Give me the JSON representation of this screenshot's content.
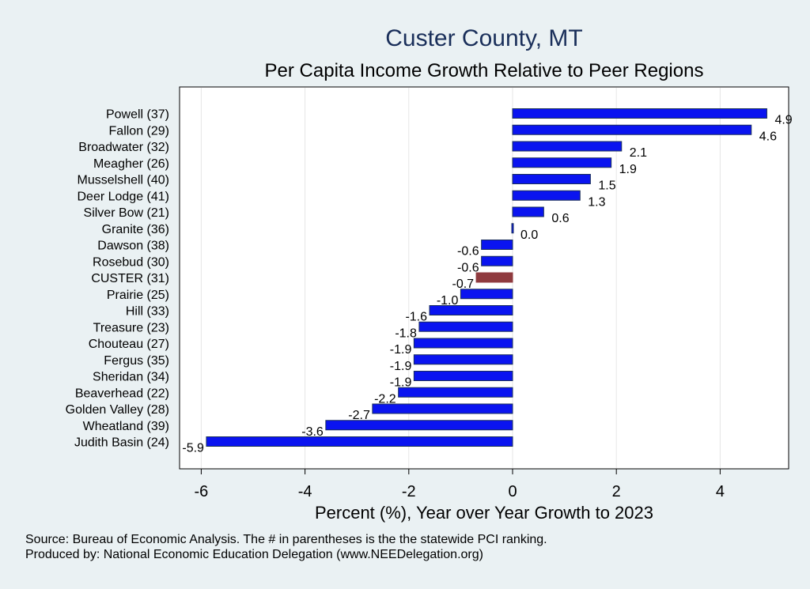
{
  "chart_data": {
    "type": "bar",
    "orientation": "horizontal",
    "title": "Custer County, MT",
    "subtitle": "Per Capita Income Growth Relative to Peer Regions",
    "xlabel": "Percent (%), Year over Year Growth to 2023",
    "ylabel": "",
    "xlim": [
      -6.3,
      5.3
    ],
    "xticks": [
      -6,
      -4,
      -2,
      0,
      2,
      4
    ],
    "grid": true,
    "categories": [
      "Powell (37)",
      "Fallon (29)",
      "Broadwater (32)",
      "Meagher (26)",
      "Musselshell (40)",
      "Deer Lodge (41)",
      "Silver Bow (21)",
      "Granite (36)",
      "Dawson (38)",
      "Rosebud (30)",
      "CUSTER (31)",
      "Prairie (25)",
      "Hill (33)",
      "Treasure (23)",
      "Chouteau (27)",
      "Fergus (35)",
      "Sheridan (34)",
      "Beaverhead (22)",
      "Golden Valley (28)",
      "Wheatland (39)",
      "Judith Basin (24)"
    ],
    "values": [
      4.9,
      4.6,
      2.1,
      1.9,
      1.5,
      1.3,
      0.6,
      0.0,
      -0.6,
      -0.6,
      -0.7,
      -1.0,
      -1.6,
      -1.8,
      -1.9,
      -1.9,
      -1.9,
      -2.2,
      -2.7,
      -3.6,
      -5.9
    ],
    "value_labels": [
      "4.9",
      "4.6",
      "2.1",
      "1.9",
      "1.5",
      "1.3",
      "0.6",
      "0.0",
      "-0.6",
      "-0.6",
      "-0.7",
      "-1.0",
      "-1.6",
      "-1.8",
      "-1.9",
      "-1.9",
      "-1.9",
      "-2.2",
      "-2.7",
      "-3.6",
      "-5.9"
    ],
    "highlight_category": "CUSTER (31)",
    "colors": {
      "bar": "#0a14f0",
      "bar_edge": "#1a2f5a",
      "highlight": "#8f3a3e",
      "background": "#eaf1f3",
      "plot_background": "#ffffff"
    }
  },
  "footer": {
    "source": "Source: Bureau of Economic Analysis. The # in parentheses is the the statewide PCI ranking.",
    "produced_by": "Produced by: National Economic Education Delegation (www.NEEDelegation.org)"
  }
}
